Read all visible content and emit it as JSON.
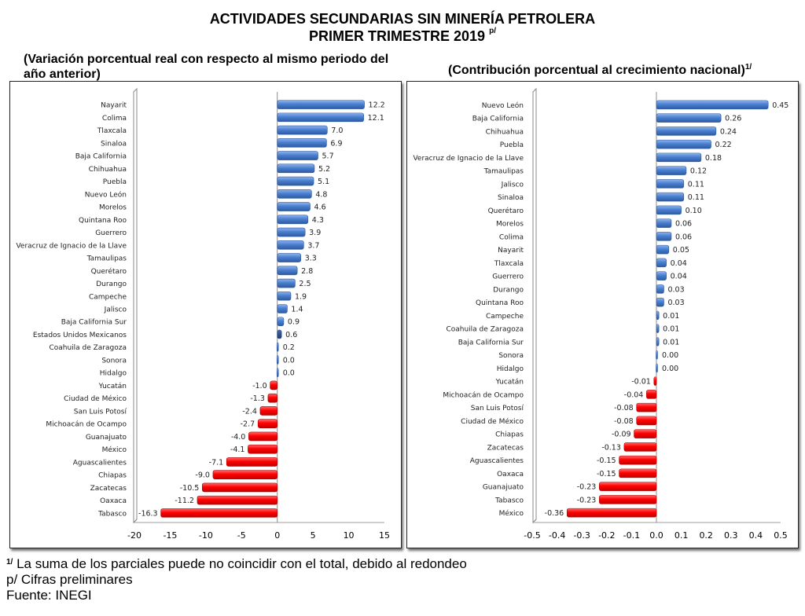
{
  "header": {
    "title_line1": "ACTIVIDADES SECUNDARIAS SIN MINERÍA PETROLERA",
    "title_line2": "PRIMER TRIMESTRE 2019",
    "title_line2_superscript": "p/",
    "subtitle_left": "(Variación porcentual real con respecto al mismo periodo del año anterior)",
    "subtitle_right": "(Contribución porcentual al crecimiento nacional)",
    "subtitle_right_superscript": "1/"
  },
  "colors": {
    "positive": "#4a7fd0",
    "positive_dark": "#2c5aa0",
    "national": "#1f3864",
    "negative": "#ff0000",
    "negative_dark": "#c00000",
    "axis": "#a6a6a6"
  },
  "chart_data": [
    {
      "type": "bar",
      "orientation": "horizontal",
      "title": "(Variación porcentual real con respecto al mismo periodo del año anterior)",
      "xlabel": "",
      "ylabel": "",
      "xlim": [
        -20,
        15
      ],
      "xticks": [
        "-20",
        "-15",
        "-10",
        "-5",
        "0",
        "5",
        "10",
        "15"
      ],
      "xtick_values": [
        -20,
        -15,
        -10,
        -5,
        0,
        5,
        10,
        15
      ],
      "grid": false,
      "highlight": "Estados Unidos Mexicanos",
      "categories": [
        "Nayarit",
        "Colima",
        "Tlaxcala",
        "Sinaloa",
        "Baja California",
        "Chihuahua",
        "Puebla",
        "Nuevo León",
        "Morelos",
        "Quintana Roo",
        "Guerrero",
        "Veracruz de Ignacio de la Llave",
        "Tamaulipas",
        "Querétaro",
        "Durango",
        "Campeche",
        "Jalisco",
        "Baja California Sur",
        "Estados Unidos Mexicanos",
        "Coahuila de Zaragoza",
        "Sonora",
        "Hidalgo",
        "Yucatán",
        "Ciudad de México",
        "San Luis Potosí",
        "Michoacán de Ocampo",
        "Guanajuato",
        "México",
        "Aguascalientes",
        "Chiapas",
        "Zacatecas",
        "Oaxaca",
        "Tabasco"
      ],
      "values": [
        12.2,
        12.1,
        7.0,
        6.9,
        5.7,
        5.2,
        5.1,
        4.8,
        4.6,
        4.3,
        3.9,
        3.7,
        3.3,
        2.8,
        2.5,
        1.9,
        1.4,
        0.9,
        0.6,
        0.2,
        0.0,
        0.0,
        -1.0,
        -1.3,
        -2.4,
        -2.7,
        -4.0,
        -4.1,
        -7.1,
        -9.0,
        -10.5,
        -11.2,
        -16.3
      ],
      "labels": [
        "12.2",
        "12.1",
        "7.0",
        "6.9",
        "5.7",
        "5.2",
        "5.1",
        "4.8",
        "4.6",
        "4.3",
        "3.9",
        "3.7",
        "3.3",
        "2.8",
        "2.5",
        "1.9",
        "1.4",
        "0.9",
        "0.6",
        "0.2",
        "0.0",
        "0.0",
        "-1.0",
        "-1.3",
        "-2.4",
        "-2.7",
        "-4.0",
        "-4.1",
        "-7.1",
        "-9.0",
        "-10.5",
        "-11.2",
        "-16.3"
      ]
    },
    {
      "type": "bar",
      "orientation": "horizontal",
      "title": "(Contribución porcentual al crecimiento nacional)1/",
      "xlabel": "",
      "ylabel": "",
      "xlim": [
        -0.5,
        0.5
      ],
      "xticks": [
        "-0.5",
        "-0.4",
        "-0.3",
        "-0.2",
        "-0.1",
        "0.0",
        "0.1",
        "0.2",
        "0.3",
        "0.4",
        "0.5"
      ],
      "xtick_values": [
        -0.5,
        -0.4,
        -0.3,
        -0.2,
        -0.1,
        0.0,
        0.1,
        0.2,
        0.3,
        0.4,
        0.5
      ],
      "grid": false,
      "categories": [
        "Nuevo León",
        "Baja California",
        "Chihuahua",
        "Puebla",
        "Veracruz de Ignacio de la Llave",
        "Tamaulipas",
        "Jalisco",
        "Sinaloa",
        "Querétaro",
        "Morelos",
        "Colima",
        "Nayarit",
        "Tlaxcala",
        "Guerrero",
        "Durango",
        "Quintana Roo",
        "Campeche",
        "Coahuila de Zaragoza",
        "Baja California Sur",
        "Sonora",
        "Hidalgo",
        "Yucatán",
        "Michoacán de Ocampo",
        "San Luis Potosí",
        "Ciudad de México",
        "Chiapas",
        "Zacatecas",
        "Aguascalientes",
        "Oaxaca",
        "Guanajuato",
        "Tabasco",
        "México"
      ],
      "values": [
        0.45,
        0.26,
        0.24,
        0.22,
        0.18,
        0.12,
        0.11,
        0.11,
        0.1,
        0.06,
        0.06,
        0.05,
        0.04,
        0.04,
        0.03,
        0.03,
        0.01,
        0.01,
        0.01,
        0.0,
        0.0,
        -0.01,
        -0.04,
        -0.08,
        -0.08,
        -0.09,
        -0.13,
        -0.15,
        -0.15,
        -0.23,
        -0.23,
        -0.36
      ],
      "labels": [
        "0.45",
        "0.26",
        "0.24",
        "0.22",
        "0.18",
        "0.12",
        "0.11",
        "0.11",
        "0.10",
        "0.06",
        "0.06",
        "0.05",
        "0.04",
        "0.04",
        "0.03",
        "0.03",
        "0.01",
        "0.01",
        "0.01",
        "0.00",
        "0.00",
        "-0.01",
        "-0.04",
        "-0.08",
        "-0.08",
        "-0.09",
        "-0.13",
        "-0.15",
        "-0.15",
        "-0.23",
        "-0.23",
        "-0.36"
      ]
    }
  ],
  "footer": {
    "note1_marker": "1/",
    "note1": "La suma de los parciales puede no coincidir con el total, debido al redondeo",
    "note2": "p/ Cifras preliminares",
    "note3": "Fuente: INEGI"
  }
}
